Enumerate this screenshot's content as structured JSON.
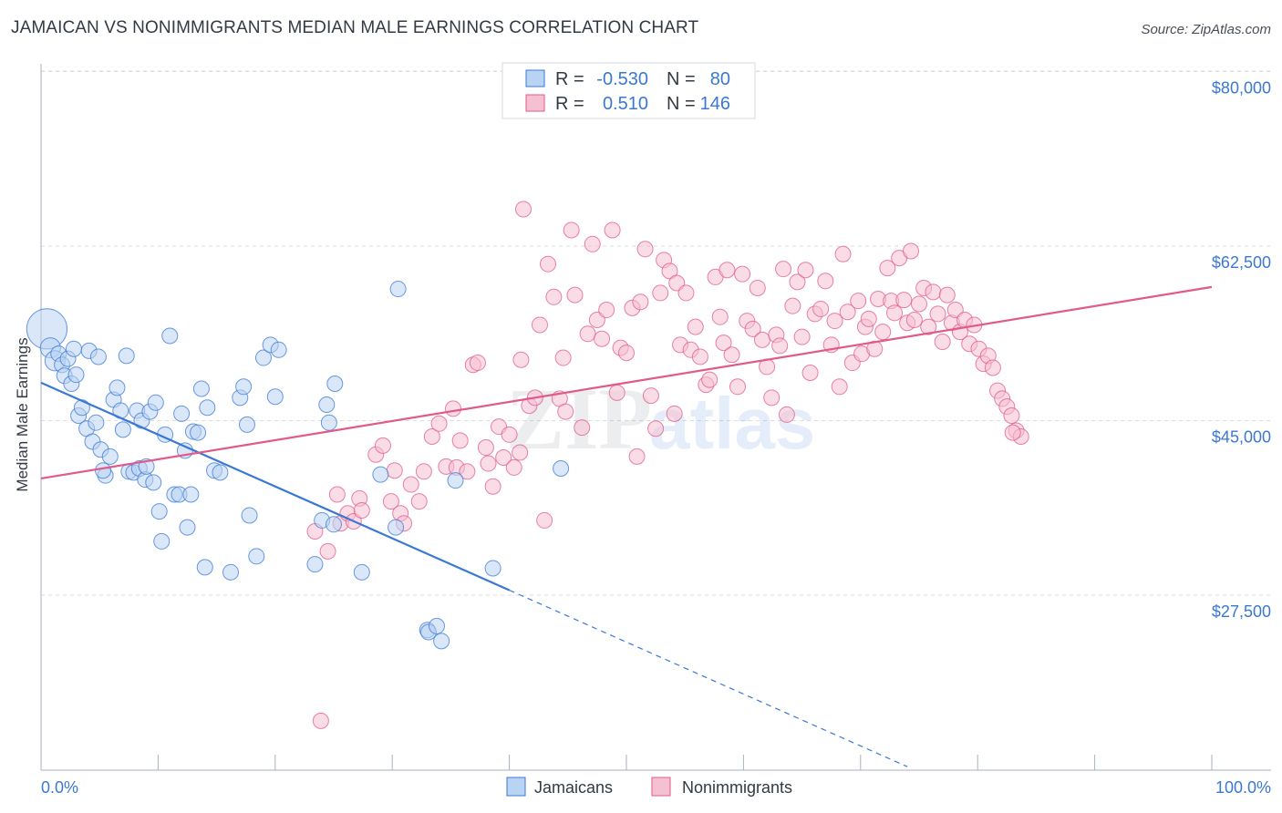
{
  "title": "JAMAICAN VS NONIMMIGRANTS MEDIAN MALE EARNINGS CORRELATION CHART",
  "source": "Source: ZipAtlas.com",
  "watermark": {
    "zip": "ZIP",
    "atlas": "atlas"
  },
  "colors": {
    "blue": "#3b78d4",
    "blue_fill": "#b9d3f2",
    "pink": "#e05a8a",
    "pink_fill": "#f5c0d2",
    "grid": "#d9dde3",
    "axis_text": "#3b78d4"
  },
  "legend": {
    "rows": [
      {
        "r_label": "R =",
        "r_value": "-0.530",
        "n_label": "N =",
        "n_value": "80"
      },
      {
        "r_label": "R =",
        "r_value": "0.510",
        "n_label": "N =",
        "n_value": "146"
      }
    ]
  },
  "bottom_legend": [
    {
      "label": "Jamaicans"
    },
    {
      "label": "Nonimmigrants"
    }
  ],
  "chart_data": {
    "type": "scatter",
    "title": "JAMAICAN VS NONIMMIGRANTS MEDIAN MALE EARNINGS CORRELATION CHART",
    "xlabel": "",
    "ylabel": "Median Male Earnings",
    "xlim": [
      0,
      100
    ],
    "ylim": [
      10000,
      82000
    ],
    "x_tick_labels": [
      "0.0%",
      "100.0%"
    ],
    "y_ticks": [
      27500,
      45000,
      62500,
      80000
    ],
    "y_tick_labels": [
      "$27,500",
      "$45,000",
      "$62,500",
      "$80,000"
    ],
    "grid": true,
    "series": [
      {
        "name": "Jamaicans",
        "R": -0.53,
        "N": 80,
        "trend": {
          "x0": 0,
          "y0": 48800,
          "x1": 40,
          "y1": 28000,
          "dash_to_x": 74,
          "dash_to_y": 10300
        },
        "points": [
          [
            0.5,
            54.2,
            2.6
          ],
          [
            0.8,
            52.3,
            1.3
          ],
          [
            1.2,
            51.0,
            1.3
          ],
          [
            1.5,
            51.7,
            1
          ],
          [
            1.8,
            50.6,
            1
          ],
          [
            2.0,
            49.5,
            1
          ],
          [
            2.3,
            51.2,
            1
          ],
          [
            2.6,
            48.7,
            1
          ],
          [
            2.8,
            52.2,
            1
          ],
          [
            3.0,
            49.6,
            1
          ],
          [
            3.2,
            45.5,
            1
          ],
          [
            3.5,
            46.3,
            1
          ],
          [
            3.9,
            44.2,
            1
          ],
          [
            4.1,
            52.0,
            1
          ],
          [
            4.4,
            42.9,
            1
          ],
          [
            4.7,
            44.8,
            1
          ],
          [
            4.9,
            51.4,
            1
          ],
          [
            5.1,
            42.1,
            1
          ],
          [
            5.5,
            39.5,
            1
          ],
          [
            5.9,
            41.4,
            1
          ],
          [
            6.2,
            47.1,
            1
          ],
          [
            6.5,
            48.3,
            1
          ],
          [
            6.8,
            46.0,
            1
          ],
          [
            7.0,
            44.1,
            1
          ],
          [
            7.3,
            51.5,
            1
          ],
          [
            7.5,
            39.9,
            1
          ],
          [
            7.9,
            39.8,
            1
          ],
          [
            8.2,
            46.0,
            1
          ],
          [
            8.4,
            40.2,
            1
          ],
          [
            8.6,
            45.0,
            1
          ],
          [
            8.9,
            39.1,
            1
          ],
          [
            9.3,
            45.9,
            1
          ],
          [
            9.6,
            38.8,
            1
          ],
          [
            9.8,
            46.8,
            1
          ],
          [
            10.1,
            35.9,
            1
          ],
          [
            10.3,
            32.9,
            1
          ],
          [
            10.6,
            43.6,
            1
          ],
          [
            11.0,
            53.5,
            1
          ],
          [
            11.4,
            37.6,
            1
          ],
          [
            11.8,
            37.6,
            1
          ],
          [
            12.0,
            45.7,
            1
          ],
          [
            12.3,
            42.0,
            1
          ],
          [
            12.5,
            34.3,
            1
          ],
          [
            12.8,
            37.6,
            1
          ],
          [
            13.0,
            43.9,
            1
          ],
          [
            13.4,
            43.8,
            1
          ],
          [
            13.7,
            48.2,
            1
          ],
          [
            14.0,
            30.3,
            1
          ],
          [
            14.2,
            46.3,
            1
          ],
          [
            14.8,
            40.0,
            1
          ],
          [
            15.3,
            39.8,
            1
          ],
          [
            16.2,
            29.8,
            1
          ],
          [
            17.0,
            47.3,
            1
          ],
          [
            17.3,
            48.4,
            1
          ],
          [
            17.6,
            44.6,
            1
          ],
          [
            17.8,
            35.5,
            1
          ],
          [
            18.4,
            31.4,
            1
          ],
          [
            19.0,
            51.3,
            1
          ],
          [
            19.6,
            52.6,
            1
          ],
          [
            20.0,
            47.4,
            1
          ],
          [
            20.3,
            52.1,
            1
          ],
          [
            23.4,
            30.6,
            1
          ],
          [
            24.0,
            35.0,
            1
          ],
          [
            24.4,
            46.6,
            1
          ],
          [
            24.6,
            44.8,
            1
          ],
          [
            25.0,
            34.6,
            1
          ],
          [
            25.1,
            48.7,
            1
          ],
          [
            27.4,
            29.8,
            1
          ],
          [
            29.0,
            39.6,
            1
          ],
          [
            30.3,
            34.3,
            1
          ],
          [
            30.5,
            58.2,
            1
          ],
          [
            33.0,
            24.0,
            1
          ],
          [
            33.1,
            23.8,
            1
          ],
          [
            33.8,
            24.4,
            1
          ],
          [
            34.2,
            22.9,
            1
          ],
          [
            35.4,
            39.0,
            1
          ],
          [
            38.6,
            30.2,
            1
          ],
          [
            44.4,
            40.2,
            1
          ],
          [
            9.0,
            40.4,
            1
          ],
          [
            5.3,
            40.0,
            1
          ]
        ]
      },
      {
        "name": "Nonimmigrants",
        "R": 0.51,
        "N": 146,
        "trend": {
          "x0": 0,
          "y0": 39200,
          "x1": 100,
          "y1": 58400
        },
        "points": [
          [
            23.4,
            33.9,
            1
          ],
          [
            23.9,
            14.9,
            1
          ],
          [
            24.5,
            31.9,
            1
          ],
          [
            25.3,
            37.6,
            1
          ],
          [
            25.6,
            34.7,
            1
          ],
          [
            26.2,
            35.7,
            1
          ],
          [
            26.7,
            34.9,
            1
          ],
          [
            27.2,
            37.2,
            1
          ],
          [
            27.4,
            36.0,
            1
          ],
          [
            28.6,
            41.6,
            1
          ],
          [
            29.2,
            42.5,
            1
          ],
          [
            29.9,
            36.9,
            1
          ],
          [
            30.2,
            40.0,
            1
          ],
          [
            30.7,
            35.7,
            1
          ],
          [
            31.0,
            34.7,
            1
          ],
          [
            31.6,
            38.6,
            1
          ],
          [
            32.3,
            36.9,
            1
          ],
          [
            32.7,
            39.9,
            1
          ],
          [
            33.4,
            43.4,
            1
          ],
          [
            34.0,
            44.7,
            1
          ],
          [
            34.6,
            40.4,
            1
          ],
          [
            35.2,
            46.2,
            1
          ],
          [
            35.5,
            40.3,
            1
          ],
          [
            35.8,
            43.0,
            1
          ],
          [
            36.4,
            39.9,
            1
          ],
          [
            36.9,
            50.6,
            1
          ],
          [
            37.3,
            50.8,
            1
          ],
          [
            38.0,
            42.3,
            1
          ],
          [
            38.2,
            40.7,
            1
          ],
          [
            38.6,
            38.4,
            1
          ],
          [
            39.1,
            44.4,
            1
          ],
          [
            39.5,
            41.3,
            1
          ],
          [
            40.0,
            43.6,
            1
          ],
          [
            40.4,
            40.3,
            1
          ],
          [
            40.9,
            41.8,
            1
          ],
          [
            41.0,
            51.1,
            1
          ],
          [
            41.2,
            66.2,
            1
          ],
          [
            41.7,
            46.5,
            1
          ],
          [
            42.2,
            47.3,
            1
          ],
          [
            42.6,
            54.6,
            1
          ],
          [
            43.0,
            35.0,
            1
          ],
          [
            43.3,
            60.7,
            1
          ],
          [
            43.8,
            57.4,
            1
          ],
          [
            44.3,
            47.2,
            1
          ],
          [
            44.6,
            51.3,
            1
          ],
          [
            44.8,
            45.9,
            1
          ],
          [
            45.3,
            64.1,
            1
          ],
          [
            45.6,
            57.6,
            1
          ],
          [
            46.2,
            44.3,
            1
          ],
          [
            46.7,
            53.7,
            1
          ],
          [
            47.1,
            62.7,
            1
          ],
          [
            47.5,
            55.1,
            1
          ],
          [
            47.9,
            53.2,
            1
          ],
          [
            48.3,
            56.1,
            1
          ],
          [
            48.8,
            64.1,
            1
          ],
          [
            49.2,
            47.8,
            1
          ],
          [
            49.5,
            52.3,
            1
          ],
          [
            50.0,
            51.8,
            1
          ],
          [
            50.5,
            56.3,
            1
          ],
          [
            50.9,
            41.4,
            1
          ],
          [
            51.2,
            56.9,
            1
          ],
          [
            51.6,
            62.2,
            1
          ],
          [
            52.1,
            47.5,
            1
          ],
          [
            52.5,
            44.2,
            1
          ],
          [
            52.9,
            57.8,
            1
          ],
          [
            53.2,
            61.1,
            1
          ],
          [
            53.7,
            60.0,
            1
          ],
          [
            54.1,
            45.7,
            1
          ],
          [
            54.3,
            58.8,
            1
          ],
          [
            54.6,
            52.6,
            1
          ],
          [
            55.1,
            57.8,
            1
          ],
          [
            55.5,
            52.1,
            1
          ],
          [
            55.9,
            54.4,
            1
          ],
          [
            56.3,
            51.4,
            1
          ],
          [
            56.8,
            48.6,
            1
          ],
          [
            57.1,
            49.1,
            1
          ],
          [
            57.6,
            59.4,
            1
          ],
          [
            58.0,
            55.4,
            1
          ],
          [
            58.3,
            52.8,
            1
          ],
          [
            58.6,
            60.1,
            1
          ],
          [
            59.0,
            51.6,
            1
          ],
          [
            59.5,
            48.4,
            1
          ],
          [
            59.9,
            59.7,
            1
          ],
          [
            60.3,
            55.0,
            1
          ],
          [
            60.8,
            54.2,
            1
          ],
          [
            61.2,
            58.3,
            1
          ],
          [
            61.6,
            53.1,
            1
          ],
          [
            62.0,
            50.4,
            1
          ],
          [
            62.4,
            47.3,
            1
          ],
          [
            62.8,
            53.6,
            1
          ],
          [
            63.1,
            52.5,
            1
          ],
          [
            63.4,
            60.2,
            1
          ],
          [
            63.7,
            45.6,
            1
          ],
          [
            64.2,
            56.5,
            1
          ],
          [
            64.6,
            58.9,
            1
          ],
          [
            65.0,
            53.4,
            1
          ],
          [
            65.3,
            60.1,
            1
          ],
          [
            65.7,
            49.8,
            1
          ],
          [
            66.1,
            55.7,
            1
          ],
          [
            66.6,
            56.2,
            1
          ],
          [
            67.0,
            59.0,
            1
          ],
          [
            67.5,
            52.6,
            1
          ],
          [
            67.8,
            55.0,
            1
          ],
          [
            68.2,
            48.4,
            1
          ],
          [
            68.5,
            61.7,
            1
          ],
          [
            68.9,
            55.9,
            1
          ],
          [
            69.3,
            50.8,
            1
          ],
          [
            69.8,
            57.0,
            1
          ],
          [
            70.1,
            51.7,
            1
          ],
          [
            70.4,
            54.4,
            1
          ],
          [
            70.7,
            55.2,
            1
          ],
          [
            71.2,
            52.2,
            1
          ],
          [
            71.5,
            57.2,
            1
          ],
          [
            71.9,
            53.9,
            1
          ],
          [
            72.3,
            60.3,
            1
          ],
          [
            72.6,
            57.0,
            1
          ],
          [
            72.9,
            55.8,
            1
          ],
          [
            73.3,
            61.3,
            1
          ],
          [
            73.7,
            57.1,
            1
          ],
          [
            74.0,
            54.8,
            1
          ],
          [
            74.3,
            62.0,
            1
          ],
          [
            74.6,
            55.1,
            1
          ],
          [
            75.0,
            56.7,
            1
          ],
          [
            75.4,
            58.3,
            1
          ],
          [
            75.8,
            54.4,
            1
          ],
          [
            76.2,
            57.9,
            1
          ],
          [
            76.6,
            55.7,
            1
          ],
          [
            77.0,
            52.9,
            1
          ],
          [
            77.4,
            57.6,
            1
          ],
          [
            77.8,
            54.8,
            1
          ],
          [
            78.1,
            56.1,
            1
          ],
          [
            78.5,
            53.9,
            1
          ],
          [
            78.9,
            55.1,
            1
          ],
          [
            79.3,
            52.7,
            1
          ],
          [
            79.7,
            54.6,
            1
          ],
          [
            80.1,
            52.2,
            1
          ],
          [
            80.5,
            50.7,
            1
          ],
          [
            80.9,
            51.5,
            1
          ],
          [
            81.3,
            50.3,
            1
          ],
          [
            81.7,
            48.0,
            1
          ],
          [
            82.1,
            47.2,
            1
          ],
          [
            82.5,
            46.4,
            1
          ],
          [
            82.9,
            45.5,
            1
          ],
          [
            83.3,
            44.0,
            1
          ],
          [
            83.7,
            43.4,
            1
          ],
          [
            83.0,
            43.8,
            1
          ]
        ]
      }
    ]
  }
}
